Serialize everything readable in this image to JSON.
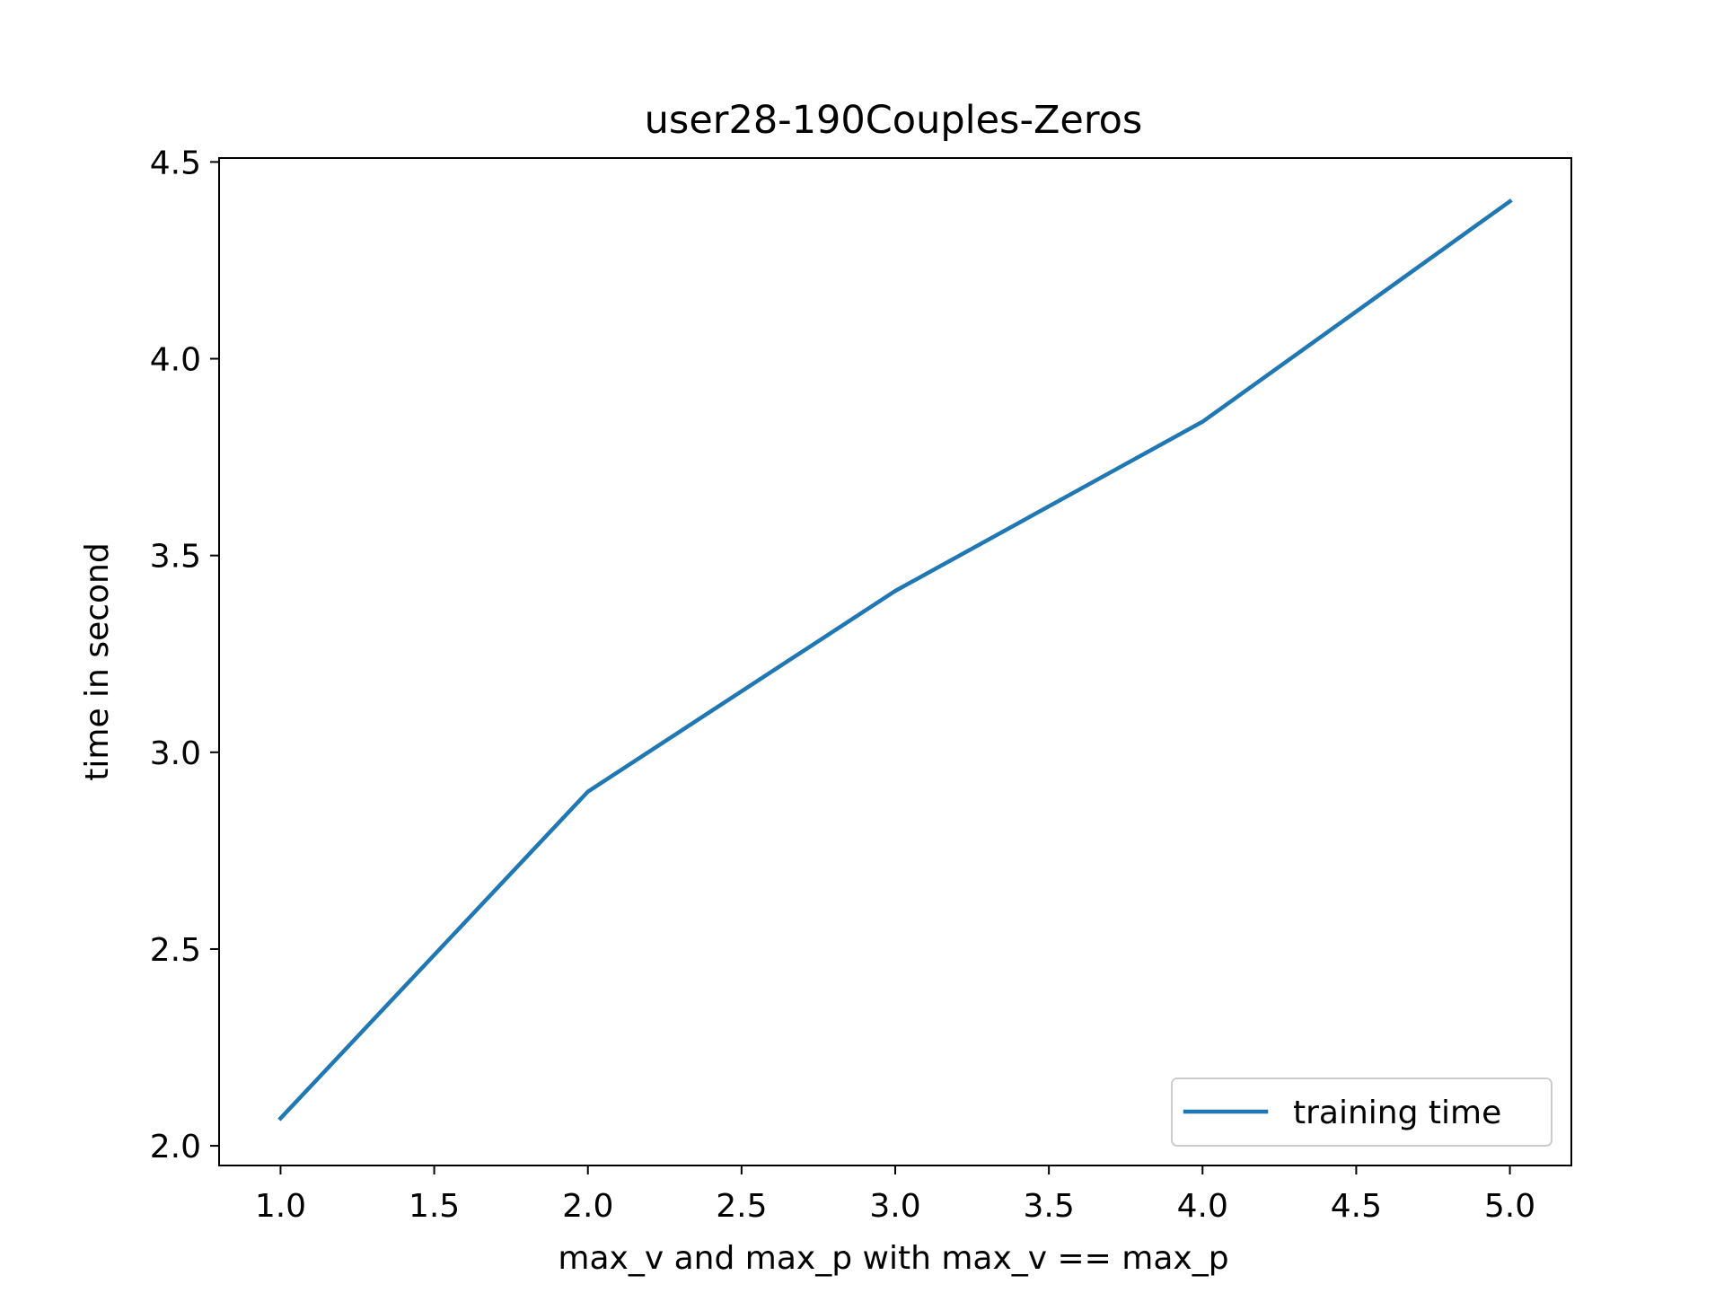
{
  "chart_data": {
    "type": "line",
    "title": "user28-190Couples-Zeros",
    "xlabel": "max_v and max_p with max_v == max_p",
    "ylabel": "time in second",
    "xlim": [
      0.8,
      5.2
    ],
    "ylim": [
      1.95,
      4.51
    ],
    "xticks": [
      1.0,
      1.5,
      2.0,
      2.5,
      3.0,
      3.5,
      4.0,
      4.5,
      5.0
    ],
    "xtick_labels": [
      "1.0",
      "1.5",
      "2.0",
      "2.5",
      "3.0",
      "3.5",
      "4.0",
      "4.5",
      "5.0"
    ],
    "yticks": [
      2.0,
      2.5,
      3.0,
      3.5,
      4.0,
      4.5
    ],
    "ytick_labels": [
      "2.0",
      "2.5",
      "3.0",
      "3.5",
      "4.0",
      "4.5"
    ],
    "grid": false,
    "legend_position": "lower right",
    "x": [
      1,
      2,
      3,
      4,
      5
    ],
    "series": [
      {
        "name": "training time",
        "color": "#1f77b4",
        "values": [
          2.07,
          2.9,
          3.41,
          3.84,
          4.4
        ]
      }
    ]
  }
}
